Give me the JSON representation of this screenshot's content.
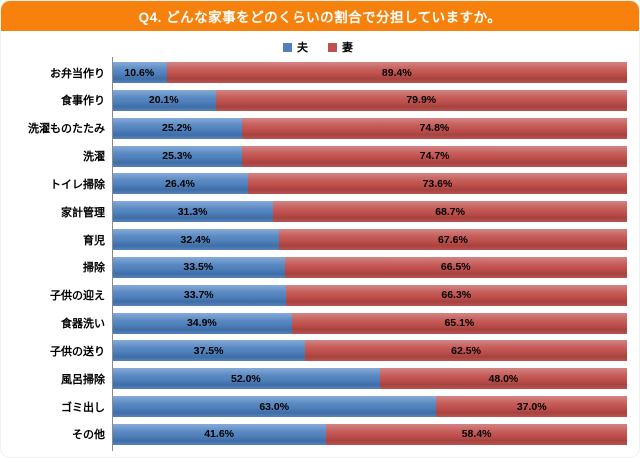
{
  "header": {
    "title": "Q4. どんな家事をどのくらいの割合で分担していますか。",
    "bg_color": "#F6820D",
    "text_color": "#FFFFFF"
  },
  "chart_data": {
    "type": "bar",
    "orientation": "horizontal",
    "stacked": true,
    "unit": "%",
    "xlim": [
      0,
      100
    ],
    "legend_position": "top-center",
    "categories": [
      "お弁当作り",
      "食事作り",
      "洗濯ものたたみ",
      "洗濯",
      "トイレ掃除",
      "家計管理",
      "育児",
      "掃除",
      "子供の迎え",
      "食器洗い",
      "子供の送り",
      "風呂掃除",
      "ゴミ出し",
      "その他"
    ],
    "series": [
      {
        "name": "夫",
        "color": "#4F81BD",
        "values": [
          10.6,
          20.1,
          25.2,
          25.3,
          26.4,
          31.3,
          32.4,
          33.5,
          33.7,
          34.9,
          37.5,
          52.0,
          63.0,
          41.6
        ]
      },
      {
        "name": "妻",
        "color": "#C0504D",
        "values": [
          89.4,
          79.9,
          74.8,
          74.7,
          73.6,
          68.7,
          67.6,
          66.5,
          66.3,
          65.1,
          62.5,
          48.0,
          37.0,
          58.4
        ]
      }
    ]
  }
}
